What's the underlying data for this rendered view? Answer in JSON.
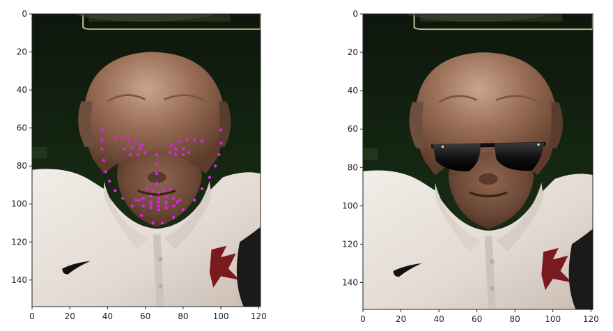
{
  "chart_data": [
    {
      "type": "image",
      "panel": "facial-keypoints",
      "xlim": [
        0,
        121
      ],
      "ylim": [
        154,
        0
      ],
      "x_ticks": [
        0,
        20,
        40,
        60,
        80,
        100,
        120
      ],
      "y_ticks": [
        0,
        20,
        40,
        60,
        80,
        100,
        120,
        140
      ],
      "x_tick_labels": [
        "0",
        "20",
        "40",
        "60",
        "80",
        "100",
        "120"
      ],
      "y_tick_labels": [
        "0",
        "20",
        "40",
        "60",
        "80",
        "100",
        "120",
        "140"
      ],
      "keypoints": {
        "color": "#e020e8",
        "points": [
          [
            37,
            61
          ],
          [
            37,
            66
          ],
          [
            37,
            71
          ],
          [
            38,
            77
          ],
          [
            39,
            83
          ],
          [
            41,
            88
          ],
          [
            44,
            93
          ],
          [
            48,
            97
          ],
          [
            53,
            101
          ],
          [
            58,
            106
          ],
          [
            64,
            110
          ],
          [
            69,
            110
          ],
          [
            75,
            107
          ],
          [
            80,
            103
          ],
          [
            86,
            98
          ],
          [
            90,
            92
          ],
          [
            94,
            86
          ],
          [
            97,
            80
          ],
          [
            99,
            74
          ],
          [
            100,
            68
          ],
          [
            100,
            61
          ],
          [
            44,
            65
          ],
          [
            48,
            65
          ],
          [
            51,
            66
          ],
          [
            55,
            67
          ],
          [
            58,
            69
          ],
          [
            74,
            69
          ],
          [
            78,
            67
          ],
          [
            82,
            66
          ],
          [
            86,
            66
          ],
          [
            90,
            67
          ],
          [
            66,
            74
          ],
          [
            66,
            79
          ],
          [
            66,
            84
          ],
          [
            66,
            89
          ],
          [
            61,
            92
          ],
          [
            64,
            93
          ],
          [
            67,
            94
          ],
          [
            70,
            93
          ],
          [
            73,
            92
          ],
          [
            49,
            71
          ],
          [
            53,
            70
          ],
          [
            57,
            71
          ],
          [
            60,
            73
          ],
          [
            56,
            74
          ],
          [
            52,
            74
          ],
          [
            73,
            73
          ],
          [
            76,
            71
          ],
          [
            80,
            71
          ],
          [
            83,
            73
          ],
          [
            80,
            74
          ],
          [
            76,
            74
          ],
          [
            55,
            98
          ],
          [
            59,
            97
          ],
          [
            63,
            96
          ],
          [
            67,
            97
          ],
          [
            71,
            96
          ],
          [
            75,
            97
          ],
          [
            78,
            98
          ],
          [
            75,
            101
          ],
          [
            71,
            102
          ],
          [
            67,
            103
          ],
          [
            63,
            102
          ],
          [
            59,
            101
          ],
          [
            57,
            98
          ],
          [
            63,
            99
          ],
          [
            67,
            99
          ],
          [
            71,
            99
          ],
          [
            77,
            99
          ],
          [
            71,
            100
          ],
          [
            67,
            101
          ],
          [
            63,
            100
          ]
        ]
      }
    },
    {
      "type": "image",
      "panel": "sunglasses-overlay",
      "xlim": [
        0,
        121
      ],
      "ylim": [
        154,
        0
      ],
      "x_ticks": [
        0,
        20,
        40,
        60,
        80,
        100,
        120
      ],
      "y_ticks": [
        0,
        20,
        40,
        60,
        80,
        100,
        120,
        140
      ],
      "x_tick_labels": [
        "0",
        "20",
        "40",
        "60",
        "80",
        "100",
        "120"
      ],
      "y_tick_labels": [
        "0",
        "20",
        "40",
        "60",
        "80",
        "100",
        "120",
        "140"
      ],
      "overlay": {
        "object": "sunglasses",
        "x_range": [
          36,
          96
        ],
        "y_range": [
          66,
          82
        ]
      }
    }
  ]
}
